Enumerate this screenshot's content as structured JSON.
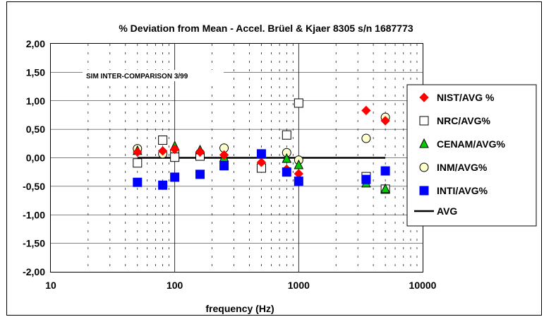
{
  "chart_data": {
    "type": "scatter",
    "title": "% Deviation from Mean - Accel. Brüel & Kjaer 8305 s/n 1687773",
    "xlabel": "frequency (Hz)",
    "ylabel": "",
    "x_scale": "log",
    "xlim": [
      10,
      10000
    ],
    "ylim": [
      -2.0,
      2.0
    ],
    "x_ticks": [
      10,
      100,
      1000,
      10000
    ],
    "x_tick_labels": [
      "10",
      "100",
      "1000",
      "10000"
    ],
    "y_ticks": [
      2.0,
      1.5,
      1.0,
      0.5,
      0.0,
      -0.5,
      -1.0,
      -1.5,
      -2.0
    ],
    "y_tick_labels": [
      "2,00",
      "1,50",
      "1,00",
      "0,50",
      "0,00",
      "-0,50",
      "-1,00",
      "-1,50",
      "-2,00"
    ],
    "grid": true,
    "annotation": "SIM INTER-COMPARISON 3/99",
    "legend_position": "right",
    "series": [
      {
        "name": "NIST/AVG %",
        "marker": "diamond",
        "color": "#ff0000",
        "stroke": "#ff0000",
        "x": [
          50,
          80,
          100,
          160,
          250,
          500,
          800,
          1000,
          3500,
          5000
        ],
        "y": [
          0.1,
          0.12,
          0.15,
          0.1,
          0.05,
          -0.08,
          -0.2,
          -0.28,
          0.83,
          0.65
        ]
      },
      {
        "name": "NRC/AVG%",
        "marker": "square-open",
        "color": "#ffffff",
        "stroke": "#000000",
        "x": [
          50,
          80,
          100,
          160,
          500,
          800,
          1000,
          3500,
          5000
        ],
        "y": [
          -0.09,
          0.31,
          0.01,
          0.03,
          -0.18,
          0.4,
          0.96,
          -0.33,
          -0.55
        ]
      },
      {
        "name": "CENAM/AVG%",
        "marker": "triangle",
        "color": "#00cc00",
        "stroke": "#000000",
        "x": [
          50,
          100,
          160,
          250,
          800,
          1000,
          3500,
          5000
        ],
        "y": [
          0.12,
          0.2,
          0.13,
          0.0,
          -0.02,
          -0.13,
          -0.45,
          -0.55
        ]
      },
      {
        "name": "INM/AVG%",
        "marker": "circle",
        "color": "#ffffcc",
        "stroke": "#000000",
        "x": [
          50,
          80,
          100,
          160,
          250,
          800,
          1000,
          3500,
          5000
        ],
        "y": [
          0.16,
          0.07,
          0.12,
          0.08,
          0.17,
          0.09,
          -0.04,
          0.34,
          0.71
        ]
      },
      {
        "name": "INTI/AVG%",
        "marker": "square",
        "color": "#0000ff",
        "stroke": "#0000ff",
        "x": [
          50,
          80,
          100,
          160,
          250,
          500,
          800,
          1000,
          3500,
          5000
        ],
        "y": [
          -0.43,
          -0.48,
          -0.34,
          -0.29,
          -0.14,
          0.07,
          -0.25,
          -0.41,
          -0.38,
          -0.23
        ]
      }
    ],
    "reference_line": {
      "name": "AVG",
      "color": "#000000",
      "y": 0.0,
      "x_start": 50,
      "x_end": 5000
    }
  }
}
